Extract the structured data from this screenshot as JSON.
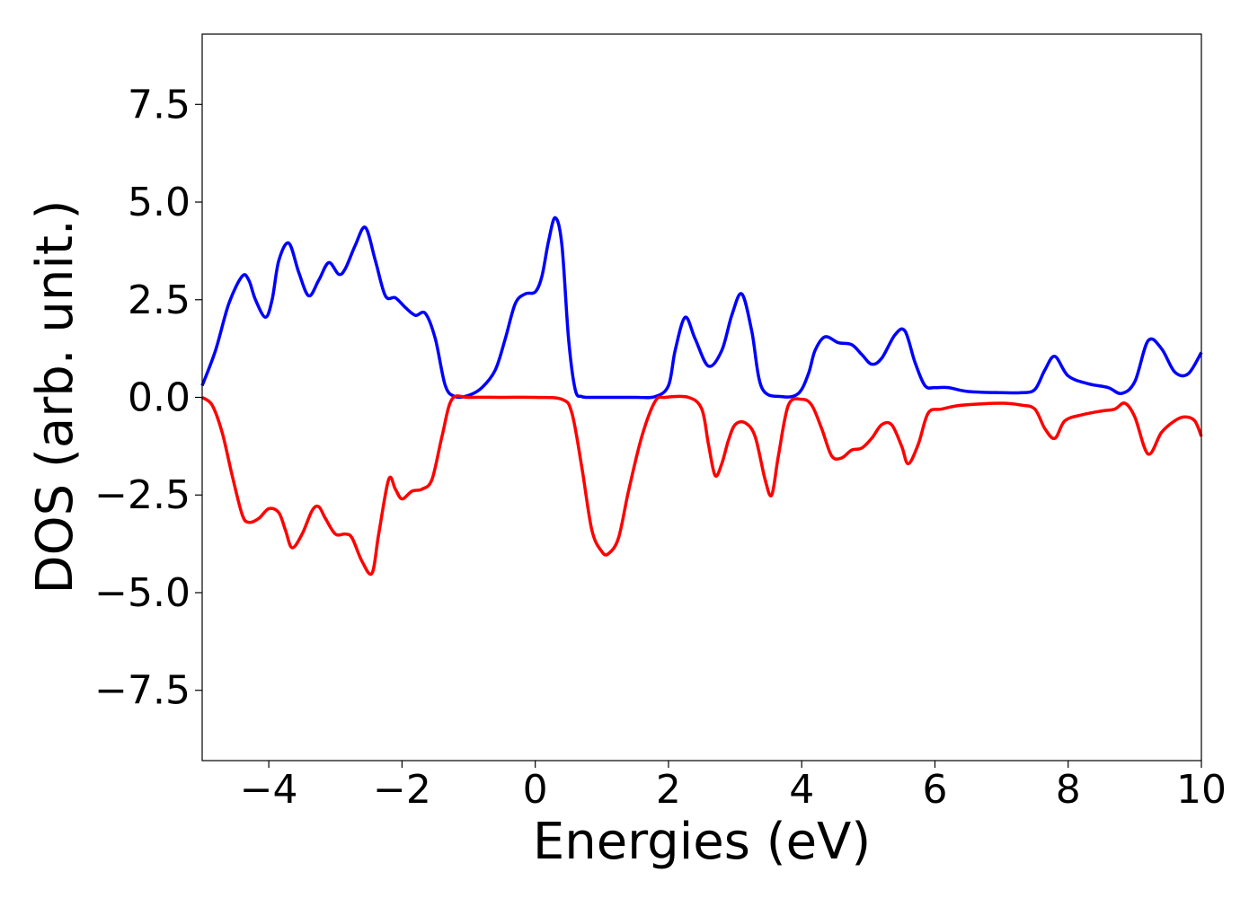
{
  "chart_data": {
    "type": "line",
    "title": "",
    "xlabel": "Energies (eV)",
    "ylabel": "DOS (arb. unit.)",
    "xlim": [
      -5,
      10
    ],
    "ylim": [
      -9.3,
      9.3
    ],
    "xticks": [
      -4,
      -2,
      0,
      2,
      4,
      6,
      8,
      10
    ],
    "xtick_labels": [
      "−4",
      "−2",
      "0",
      "2",
      "4",
      "6",
      "8",
      "10"
    ],
    "yticks": [
      7.5,
      5.0,
      2.5,
      0.0,
      -2.5,
      -5.0,
      -7.5
    ],
    "ytick_labels": [
      "7.5",
      "5.0",
      "2.5",
      "0.0",
      "−2.5",
      "−5.0",
      "−7.5"
    ],
    "grid": false,
    "legend": "none",
    "series": [
      {
        "color": "#0000ff",
        "x": [
          -5.0,
          -4.8,
          -4.6,
          -4.4,
          -4.3,
          -4.2,
          -4.05,
          -3.95,
          -3.85,
          -3.7,
          -3.55,
          -3.4,
          -3.25,
          -3.1,
          -2.95,
          -2.85,
          -2.7,
          -2.55,
          -2.4,
          -2.25,
          -2.1,
          -1.95,
          -1.8,
          -1.65,
          -1.5,
          -1.35,
          -1.2,
          -1.0,
          -0.8,
          -0.6,
          -0.45,
          -0.3,
          -0.15,
          0.0,
          0.1,
          0.2,
          0.3,
          0.4,
          0.5,
          0.6,
          0.7,
          0.85,
          1.0,
          1.5,
          1.8,
          2.0,
          2.1,
          2.25,
          2.4,
          2.6,
          2.8,
          2.95,
          3.1,
          3.25,
          3.4,
          3.7,
          3.95,
          4.1,
          4.2,
          4.35,
          4.55,
          4.75,
          4.9,
          5.05,
          5.2,
          5.4,
          5.55,
          5.7,
          5.85,
          6.0,
          6.2,
          6.5,
          7.0,
          7.3,
          7.5,
          7.65,
          7.8,
          8.0,
          8.3,
          8.6,
          8.8,
          9.0,
          9.2,
          9.4,
          9.6,
          9.8,
          10.0
        ],
        "values": [
          0.3,
          1.2,
          2.4,
          3.1,
          3.0,
          2.5,
          2.05,
          2.5,
          3.5,
          3.95,
          3.2,
          2.6,
          3.0,
          3.45,
          3.15,
          3.3,
          3.9,
          4.35,
          3.5,
          2.6,
          2.55,
          2.3,
          2.1,
          2.15,
          1.5,
          0.3,
          0.02,
          0.05,
          0.25,
          0.7,
          1.5,
          2.4,
          2.65,
          2.7,
          3.1,
          4.0,
          4.6,
          3.9,
          1.5,
          0.2,
          0.02,
          0.0,
          0.0,
          0.0,
          0.02,
          0.3,
          1.2,
          2.05,
          1.5,
          0.8,
          1.2,
          2.1,
          2.65,
          1.7,
          0.25,
          0.02,
          0.1,
          0.6,
          1.2,
          1.55,
          1.4,
          1.35,
          1.1,
          0.85,
          1.0,
          1.6,
          1.7,
          0.9,
          0.3,
          0.25,
          0.25,
          0.15,
          0.12,
          0.12,
          0.2,
          0.7,
          1.05,
          0.55,
          0.35,
          0.25,
          0.1,
          0.4,
          1.45,
          1.25,
          0.65,
          0.6,
          1.15
        ]
      },
      {
        "color": "#ff0000",
        "x": [
          -5.0,
          -4.85,
          -4.7,
          -4.55,
          -4.4,
          -4.3,
          -4.15,
          -4.0,
          -3.85,
          -3.75,
          -3.65,
          -3.5,
          -3.35,
          -3.25,
          -3.15,
          -3.0,
          -2.85,
          -2.75,
          -2.6,
          -2.45,
          -2.35,
          -2.2,
          -2.1,
          -2.0,
          -1.85,
          -1.7,
          -1.55,
          -1.4,
          -1.25,
          -1.0,
          -0.5,
          0.0,
          0.4,
          0.55,
          0.7,
          0.85,
          1.0,
          1.1,
          1.25,
          1.4,
          1.6,
          1.8,
          1.95,
          2.3,
          2.5,
          2.6,
          2.7,
          2.8,
          2.9,
          3.0,
          3.15,
          3.3,
          3.45,
          3.55,
          3.65,
          3.8,
          4.0,
          4.15,
          4.3,
          4.45,
          4.6,
          4.75,
          4.9,
          5.05,
          5.2,
          5.35,
          5.5,
          5.6,
          5.75,
          5.9,
          6.1,
          6.4,
          7.0,
          7.3,
          7.5,
          7.65,
          7.8,
          7.95,
          8.2,
          8.5,
          8.7,
          8.85,
          9.0,
          9.2,
          9.4,
          9.6,
          9.75,
          9.9,
          10.0
        ],
        "values": [
          0.0,
          -0.2,
          -0.9,
          -2.0,
          -3.0,
          -3.2,
          -3.1,
          -2.85,
          -2.95,
          -3.4,
          -3.85,
          -3.5,
          -2.9,
          -2.8,
          -3.1,
          -3.5,
          -3.5,
          -3.6,
          -4.2,
          -4.5,
          -3.5,
          -2.1,
          -2.35,
          -2.6,
          -2.4,
          -2.35,
          -2.1,
          -1.0,
          -0.05,
          0.0,
          0.0,
          0.0,
          -0.05,
          -0.4,
          -1.8,
          -3.4,
          -3.95,
          -4.0,
          -3.6,
          -2.4,
          -1.0,
          -0.1,
          0.0,
          0.0,
          -0.3,
          -1.2,
          -2.0,
          -1.7,
          -1.1,
          -0.7,
          -0.65,
          -1.0,
          -2.1,
          -2.5,
          -1.5,
          -0.2,
          -0.05,
          -0.2,
          -0.8,
          -1.5,
          -1.55,
          -1.35,
          -1.3,
          -1.05,
          -0.7,
          -0.7,
          -1.25,
          -1.7,
          -1.2,
          -0.4,
          -0.3,
          -0.2,
          -0.15,
          -0.2,
          -0.3,
          -0.8,
          -1.05,
          -0.6,
          -0.45,
          -0.35,
          -0.3,
          -0.15,
          -0.5,
          -1.45,
          -0.9,
          -0.6,
          -0.5,
          -0.6,
          -1.0
        ]
      }
    ]
  }
}
